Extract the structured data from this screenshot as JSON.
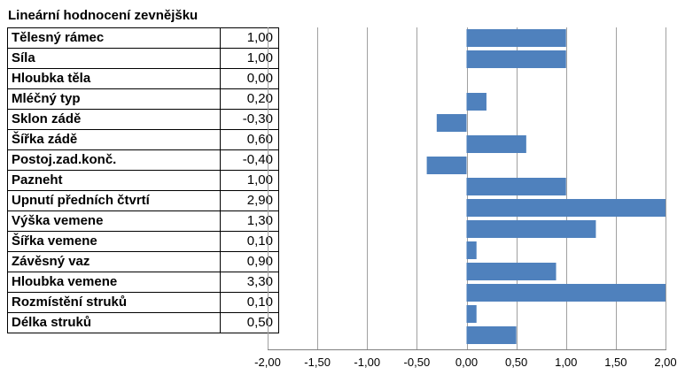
{
  "chart_data": {
    "type": "bar",
    "orientation": "horizontal",
    "title": "Lineární hodnocení zevnějšku",
    "categories": [
      "Tělesný rámec",
      "Síla",
      "Hloubka těla",
      "Mléčný typ",
      "Sklon zádě",
      "Šířka zádě",
      "Postoj.zad.konč.",
      "Pazneht",
      "Upnutí předních čtvrtí",
      "Výška vemene",
      "Šířka vemene",
      "Závěsný vaz",
      "Hloubka vemene",
      "Rozmístění struků",
      "Délka struků"
    ],
    "values": [
      1.0,
      1.0,
      0.0,
      0.2,
      -0.3,
      0.6,
      -0.4,
      1.0,
      2.9,
      1.3,
      0.1,
      0.9,
      3.3,
      0.1,
      0.5
    ],
    "value_labels": [
      "1,00",
      "1,00",
      "0,00",
      "0,20",
      "-0,30",
      "0,60",
      "-0,40",
      "1,00",
      "2,90",
      "1,30",
      "0,10",
      "0,90",
      "3,30",
      "0,10",
      "0,50"
    ],
    "xlim": [
      -2,
      2
    ],
    "xticks": [
      -2,
      -1.5,
      -1,
      -0.5,
      0,
      0.5,
      1,
      1.5,
      2
    ],
    "xtick_labels": [
      "-2,00",
      "-1,50",
      "-1,00",
      "-0,50",
      "0,00",
      "0,50",
      "1,00",
      "1,50",
      "2,00"
    ],
    "bar_color": "#4f81bd",
    "grid": true
  }
}
